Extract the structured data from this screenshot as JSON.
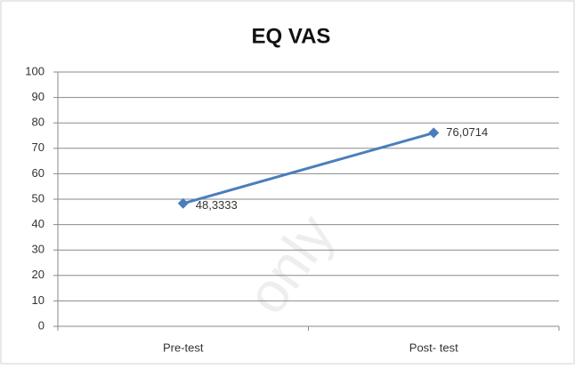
{
  "chart_data": {
    "type": "line",
    "title": "EQ VAS",
    "categories": [
      "Pre-test",
      "Post- test"
    ],
    "series": [
      {
        "name": "EQ VAS",
        "color": "#4a7ebb",
        "values": [
          48.3333,
          76.0714
        ],
        "value_labels": [
          "48,3333",
          "76,0714"
        ]
      }
    ],
    "ylim": [
      0,
      100
    ],
    "yticks": [
      0,
      10,
      20,
      30,
      40,
      50,
      60,
      70,
      80,
      90,
      100
    ],
    "grid": true,
    "watermark": "only"
  }
}
